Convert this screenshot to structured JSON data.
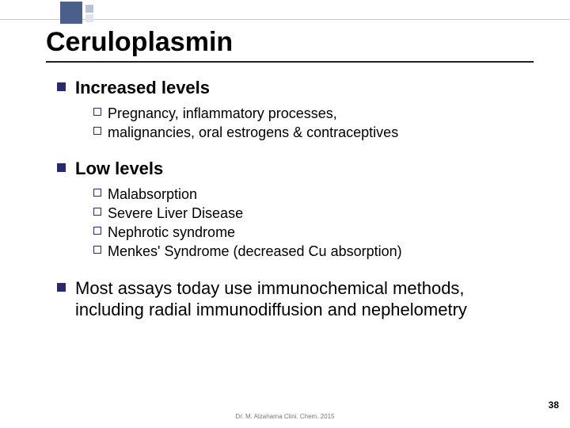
{
  "decoration": {
    "big_color": "#4a5f8a",
    "small1_color": "#b7c2d7",
    "small2_color": "#dfe4ee",
    "line_color": "#c9c9c9"
  },
  "title": "Ceruloplasmin",
  "sections": {
    "increased": {
      "heading": "Increased levels",
      "items": [
        "Pregnancy, inflammatory processes,",
        "malignancies, oral estrogens & contraceptives"
      ]
    },
    "low": {
      "heading": "Low levels",
      "items": [
        "Malabsorption",
        "Severe Liver Disease",
        "Nephrotic syndrome",
        "Menkes' Syndrome (decreased Cu absorption)"
      ]
    },
    "note": "Most assays today use immunochemical methods, including radial immunodiffusion and nephelometry"
  },
  "footer": {
    "citation": "Dr. M. Alzaharna Clini. Chem. 2015",
    "page": "38"
  },
  "colors": {
    "bullet_fill": "#2a2a6a",
    "text": "#000000",
    "background": "#ffffff"
  },
  "fonts": {
    "title_size_pt": 26,
    "lvl1_size_pt": 17,
    "lvl2_size_pt": 14,
    "family": "Arial"
  }
}
